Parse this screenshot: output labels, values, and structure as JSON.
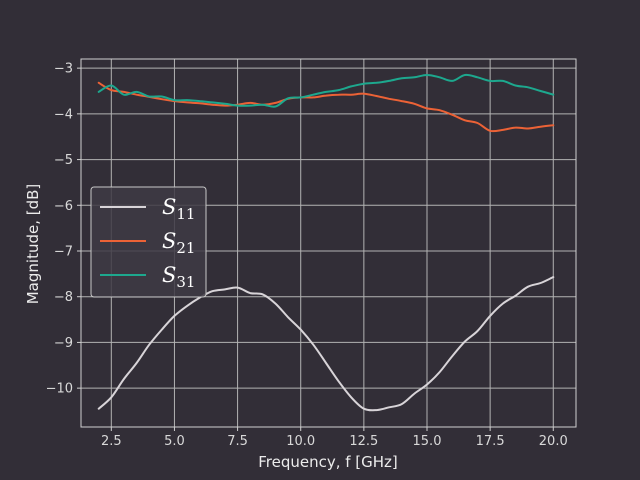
{
  "colors": {
    "background": "#322e37",
    "grid": "#b3b3b3",
    "axes": "#d0d0d0",
    "text": "#e6e6e6"
  },
  "chart_data": {
    "type": "line",
    "title": "",
    "xlabel": "Frequency, f [GHz]",
    "ylabel": "Magnitude, [dB]",
    "xlim": [
      1.3,
      20.9
    ],
    "ylim": [
      -10.85,
      -2.8
    ],
    "xticks": [
      2.5,
      5.0,
      7.5,
      10.0,
      12.5,
      15.0,
      17.5,
      20.0
    ],
    "xtick_labels": [
      "2.5",
      "5.0",
      "7.5",
      "10.0",
      "12.5",
      "15.0",
      "17.5",
      "20.0"
    ],
    "yticks": [
      -3,
      -4,
      -5,
      -6,
      -7,
      -8,
      -9,
      -10
    ],
    "ytick_labels": [
      "−3",
      "−4",
      "−5",
      "−6",
      "−7",
      "−8",
      "−9",
      "−10"
    ],
    "grid": true,
    "legend_position": "center-left",
    "series": [
      {
        "name": "S11",
        "base": "S",
        "sub": "11",
        "color": "#d8d4d8",
        "x": [
          2.0,
          2.5,
          3.0,
          3.5,
          4.0,
          4.5,
          5.0,
          5.5,
          6.0,
          6.5,
          7.0,
          7.5,
          8.0,
          8.5,
          9.0,
          9.5,
          10.0,
          10.5,
          11.0,
          11.5,
          12.0,
          12.5,
          13.0,
          13.5,
          14.0,
          14.5,
          15.0,
          15.5,
          16.0,
          16.5,
          17.0,
          17.5,
          18.0,
          18.5,
          19.0,
          19.5,
          20.0
        ],
        "y": [
          -10.45,
          -10.2,
          -9.8,
          -9.45,
          -9.05,
          -8.72,
          -8.42,
          -8.2,
          -8.02,
          -7.88,
          -7.84,
          -7.8,
          -7.92,
          -7.95,
          -8.15,
          -8.45,
          -8.72,
          -9.05,
          -9.45,
          -9.85,
          -10.2,
          -10.45,
          -10.48,
          -10.42,
          -10.35,
          -10.12,
          -9.92,
          -9.65,
          -9.3,
          -8.98,
          -8.75,
          -8.42,
          -8.15,
          -7.98,
          -7.78,
          -7.7,
          -7.57
        ]
      },
      {
        "name": "S21",
        "base": "S",
        "sub": "21",
        "color": "#ec6236",
        "x": [
          2.0,
          2.5,
          3.0,
          3.5,
          4.0,
          4.5,
          5.0,
          5.5,
          6.0,
          6.5,
          7.0,
          7.5,
          8.0,
          8.5,
          9.0,
          9.5,
          10.0,
          10.5,
          11.0,
          11.5,
          12.0,
          12.5,
          13.0,
          13.5,
          14.0,
          14.5,
          15.0,
          15.5,
          16.0,
          16.5,
          17.0,
          17.5,
          18.0,
          18.5,
          19.0,
          19.5,
          20.0
        ],
        "y": [
          -3.32,
          -3.48,
          -3.52,
          -3.58,
          -3.63,
          -3.68,
          -3.72,
          -3.75,
          -3.77,
          -3.8,
          -3.82,
          -3.8,
          -3.76,
          -3.8,
          -3.76,
          -3.67,
          -3.64,
          -3.64,
          -3.6,
          -3.58,
          -3.58,
          -3.56,
          -3.61,
          -3.67,
          -3.72,
          -3.78,
          -3.88,
          -3.92,
          -4.02,
          -4.14,
          -4.2,
          -4.37,
          -4.35,
          -4.3,
          -4.32,
          -4.28,
          -4.25
        ]
      },
      {
        "name": "S31",
        "base": "S",
        "sub": "31",
        "color": "#1da88e",
        "x": [
          2.0,
          2.5,
          3.0,
          3.5,
          4.0,
          4.5,
          5.0,
          5.5,
          6.0,
          6.5,
          7.0,
          7.5,
          8.0,
          8.5,
          9.0,
          9.5,
          10.0,
          10.5,
          11.0,
          11.5,
          12.0,
          12.5,
          13.0,
          13.5,
          14.0,
          14.5,
          15.0,
          15.5,
          16.0,
          16.5,
          17.0,
          17.5,
          18.0,
          18.5,
          19.0,
          19.5,
          20.0
        ],
        "y": [
          -3.52,
          -3.38,
          -3.58,
          -3.52,
          -3.62,
          -3.62,
          -3.7,
          -3.7,
          -3.72,
          -3.75,
          -3.78,
          -3.82,
          -3.82,
          -3.8,
          -3.84,
          -3.66,
          -3.64,
          -3.58,
          -3.52,
          -3.48,
          -3.4,
          -3.34,
          -3.32,
          -3.28,
          -3.22,
          -3.2,
          -3.15,
          -3.2,
          -3.28,
          -3.15,
          -3.2,
          -3.28,
          -3.28,
          -3.38,
          -3.42,
          -3.5,
          -3.58
        ]
      }
    ]
  }
}
